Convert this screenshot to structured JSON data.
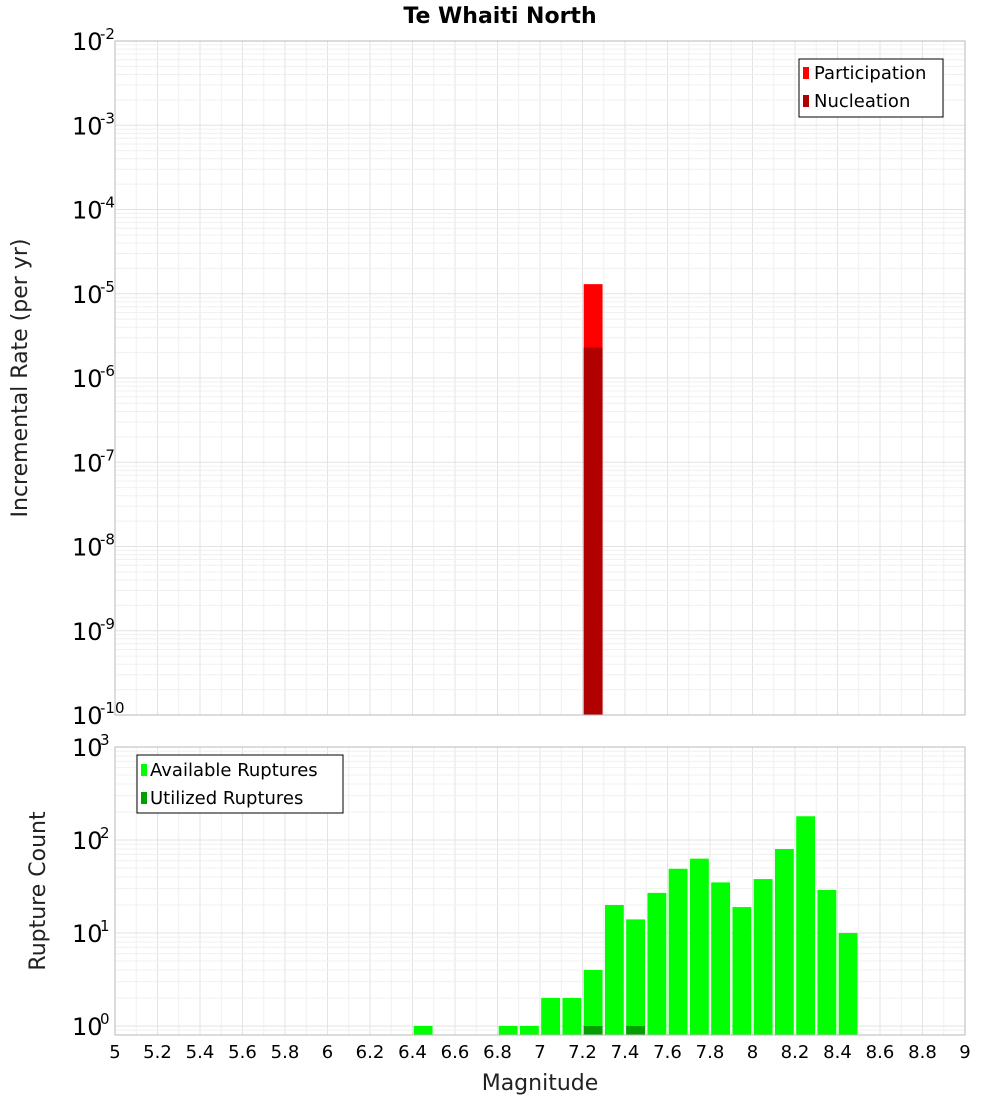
{
  "chart_data": [
    {
      "type": "bar",
      "title": "Te Whaiti North",
      "xlabel": "",
      "ylabel": "Incremental Rate (per yr)",
      "yscale": "log",
      "xlim": [
        5,
        9
      ],
      "ylim": [
        1e-10,
        0.01
      ],
      "ytick_exponents": [
        "-2",
        "-3",
        "-4",
        "-5",
        "-6",
        "-7",
        "-8",
        "-9",
        "-10"
      ],
      "ytick_base": "10",
      "legend_position": "top-right",
      "bin_width": 0.1,
      "series": [
        {
          "name": "Participation",
          "color": "#ff0000",
          "points": [
            {
              "x": 7.25,
              "y": 1.3e-05
            }
          ]
        },
        {
          "name": "Nucleation",
          "color": "#b00000",
          "points": [
            {
              "x": 7.25,
              "y": 2.3e-06
            }
          ]
        }
      ]
    },
    {
      "type": "bar",
      "title": "",
      "xlabel": "Magnitude",
      "ylabel": "Rupture Count",
      "yscale": "log",
      "xlim": [
        5,
        9
      ],
      "ylim": [
        0.8,
        1000
      ],
      "ytick_exponents": [
        "3",
        "2",
        "1",
        "0"
      ],
      "ytick_base": "10",
      "legend_position": "top-left",
      "bin_width": 0.1,
      "x_tick_labels": [
        "5",
        "5.2",
        "5.4",
        "5.6",
        "5.8",
        "6",
        "6.2",
        "6.4",
        "6.6",
        "6.8",
        "7",
        "7.2",
        "7.4",
        "7.6",
        "7.8",
        "8",
        "8.2",
        "8.4",
        "8.6",
        "8.8",
        "9"
      ],
      "series": [
        {
          "name": "Available Ruptures",
          "color": "#00ff00",
          "points": [
            {
              "x": 6.45,
              "y": 1
            },
            {
              "x": 6.85,
              "y": 1
            },
            {
              "x": 6.95,
              "y": 1
            },
            {
              "x": 7.05,
              "y": 2
            },
            {
              "x": 7.15,
              "y": 2
            },
            {
              "x": 7.25,
              "y": 4
            },
            {
              "x": 7.35,
              "y": 20
            },
            {
              "x": 7.45,
              "y": 14
            },
            {
              "x": 7.55,
              "y": 27
            },
            {
              "x": 7.65,
              "y": 49
            },
            {
              "x": 7.75,
              "y": 63
            },
            {
              "x": 7.85,
              "y": 35
            },
            {
              "x": 7.95,
              "y": 19
            },
            {
              "x": 8.05,
              "y": 38
            },
            {
              "x": 8.15,
              "y": 80
            },
            {
              "x": 8.25,
              "y": 180
            },
            {
              "x": 8.35,
              "y": 29
            },
            {
              "x": 8.45,
              "y": 10
            }
          ]
        },
        {
          "name": "Utilized Ruptures",
          "color": "#00a000",
          "points": [
            {
              "x": 7.25,
              "y": 1
            },
            {
              "x": 7.45,
              "y": 1
            }
          ]
        }
      ]
    }
  ]
}
